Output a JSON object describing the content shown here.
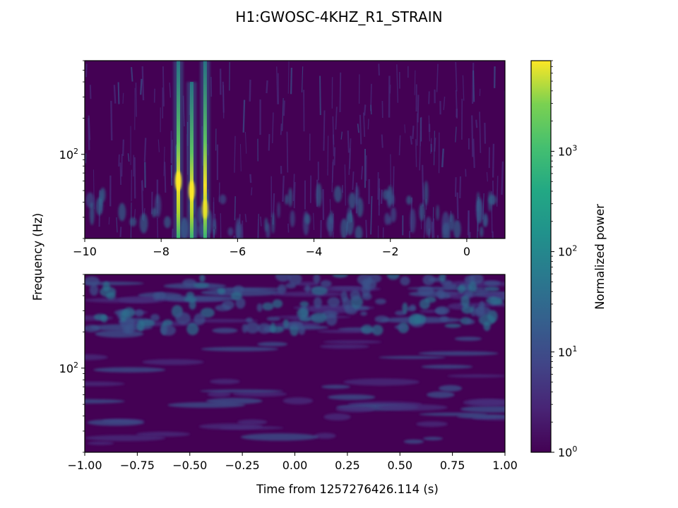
{
  "figure": {
    "title": "H1:GWOSC-4KHZ_R1_STRAIN",
    "ylabel": "Frequency (Hz)",
    "xlabel": "Time from 1257276426.114 (s)"
  },
  "colorbar": {
    "label": "Normalized power",
    "colormap": "viridis",
    "scale": "log",
    "range": [
      1,
      8000
    ],
    "tick_bases": [
      "10",
      "10",
      "10",
      "10"
    ],
    "tick_exps": [
      "0",
      "1",
      "2",
      "3"
    ],
    "colors": {
      "low": "#440154",
      "mid_low": "#3b528b",
      "mid": "#21918c",
      "mid_high": "#5ec962",
      "high": "#fde725"
    }
  },
  "chart_data": [
    {
      "type": "heatmap",
      "panel": "top",
      "x_ticks": [
        "−10",
        "−8",
        "−6",
        "−4",
        "−2",
        "0"
      ],
      "x_tick_values": [
        -10,
        -8,
        -6,
        -4,
        -2,
        0
      ],
      "xlim": [
        -10,
        1
      ],
      "y_scale": "log",
      "ylim": [
        20,
        600
      ],
      "y_tick_base": "10",
      "y_tick_exp": "2",
      "y_tick_value": 100,
      "features": [
        {
          "t": -7.55,
          "peak_freq": 60,
          "max_freq": 600,
          "peak_power": 7000
        },
        {
          "t": -7.2,
          "peak_freq": 50,
          "max_freq": 400,
          "peak_power": 3000
        },
        {
          "t": -6.85,
          "peak_freq": 35,
          "max_freq": 600,
          "peak_power": 1500
        }
      ],
      "background_power": 2
    },
    {
      "type": "heatmap",
      "panel": "bottom",
      "x_ticks": [
        "−1.00",
        "−0.75",
        "−0.50",
        "−0.25",
        "0.00",
        "0.25",
        "0.50",
        "0.75",
        "1.00"
      ],
      "x_tick_values": [
        -1.0,
        -0.75,
        -0.5,
        -0.25,
        0.0,
        0.25,
        0.5,
        0.75,
        1.0
      ],
      "xlim": [
        -1,
        1
      ],
      "y_scale": "log",
      "ylim": [
        20,
        600
      ],
      "y_tick_base": "10",
      "y_tick_exp": "2",
      "y_tick_value": 100,
      "background_power": 3
    }
  ]
}
